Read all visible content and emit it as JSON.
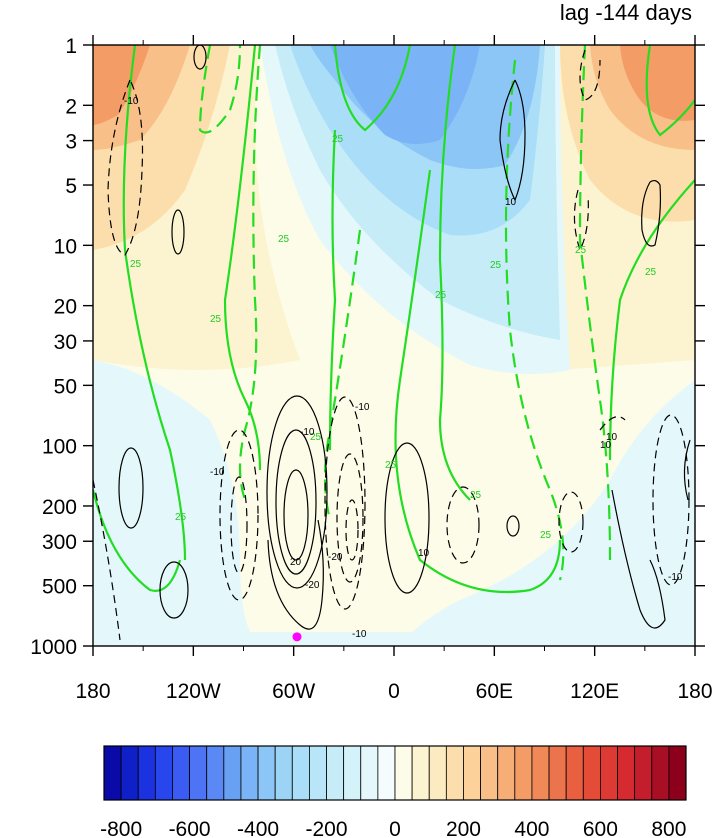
{
  "chart_data": {
    "type": "heatmap",
    "title": "lag -144 days",
    "x_ticks": [
      "180",
      "120W",
      "60W",
      "0",
      "60E",
      "120E",
      "180"
    ],
    "x_tick_values": [
      -180,
      -120,
      -60,
      0,
      60,
      120,
      180
    ],
    "y_ticks": [
      "1",
      "2",
      "3",
      "5",
      "10",
      "20",
      "30",
      "50",
      "100",
      "200",
      "300",
      "500",
      "1000"
    ],
    "y_tick_values": [
      1,
      2,
      3,
      5,
      10,
      20,
      30,
      50,
      100,
      200,
      300,
      500,
      1000
    ],
    "y_scale": "log",
    "y_reversed": true,
    "xlim": [
      -180,
      180
    ],
    "ylim": [
      1000,
      1
    ],
    "colorbar": {
      "labels": [
        "-800",
        "-600",
        "-400",
        "-200",
        "0",
        "200",
        "400",
        "600",
        "800"
      ],
      "label_values": [
        -800,
        -600,
        -400,
        -200,
        0,
        200,
        400,
        600,
        800
      ],
      "levels": [
        -850,
        -800,
        -750,
        -700,
        -650,
        -600,
        -550,
        -500,
        -450,
        -400,
        -350,
        -300,
        -250,
        -200,
        -150,
        -100,
        -50,
        0,
        50,
        100,
        150,
        200,
        250,
        300,
        350,
        400,
        450,
        500,
        550,
        600,
        650,
        700,
        750,
        800,
        850
      ],
      "colors": [
        "#0a0aa8",
        "#1020c8",
        "#1c32e0",
        "#2846ee",
        "#3a5cf2",
        "#4c74f4",
        "#5a88f4",
        "#68a0f4",
        "#7ab4f6",
        "#8cc6f6",
        "#9cd4f6",
        "#aadef8",
        "#b8e6f8",
        "#c6ecf8",
        "#d4f2fa",
        "#e4f8fc",
        "#f4fcfe",
        "#fcfce8",
        "#fcf4d0",
        "#fceac0",
        "#fcdeac",
        "#fcd29a",
        "#f8c088",
        "#f6ae76",
        "#f49c66",
        "#f08858",
        "#ec744c",
        "#e86040",
        "#e44c38",
        "#de3a34",
        "#d42a30",
        "#c41e2c",
        "#a80e24",
        "#8c001c"
      ]
    },
    "shading_features": [
      {
        "name": "negative anomaly upper stratosphere",
        "lon_range": [
          -40,
          80
        ],
        "pressure_range": [
          1,
          50
        ],
        "min_value": -350
      },
      {
        "name": "positive anomaly upper west",
        "lon_range": [
          -180,
          -130
        ],
        "pressure_range": [
          1,
          10
        ],
        "max_value": 450
      },
      {
        "name": "positive anomaly upper east",
        "lon_range": [
          140,
          180
        ],
        "pressure_range": [
          1,
          5
        ],
        "max_value": 450
      },
      {
        "name": "weak negative lower west",
        "lon_range": [
          -180,
          -130
        ],
        "pressure_range": [
          50,
          1000
        ],
        "value": -50
      },
      {
        "name": "weak negative lower east",
        "lon_range": [
          60,
          180
        ],
        "pressure_range": [
          100,
          1000
        ],
        "value": -50
      }
    ],
    "green_contour_labels": [
      "25",
      "25",
      "25",
      "25",
      "25",
      "25",
      "25",
      "25",
      "25",
      "25",
      "25",
      "25",
      "25"
    ],
    "black_contour_labels": [
      "-10",
      "10",
      "-10",
      "-10",
      "10",
      "-10",
      "-20",
      "-20",
      "-10",
      "10",
      "20",
      "-10",
      "10"
    ],
    "marker": {
      "lon": -58,
      "pressure": 900,
      "color": "#ff00ff"
    }
  }
}
